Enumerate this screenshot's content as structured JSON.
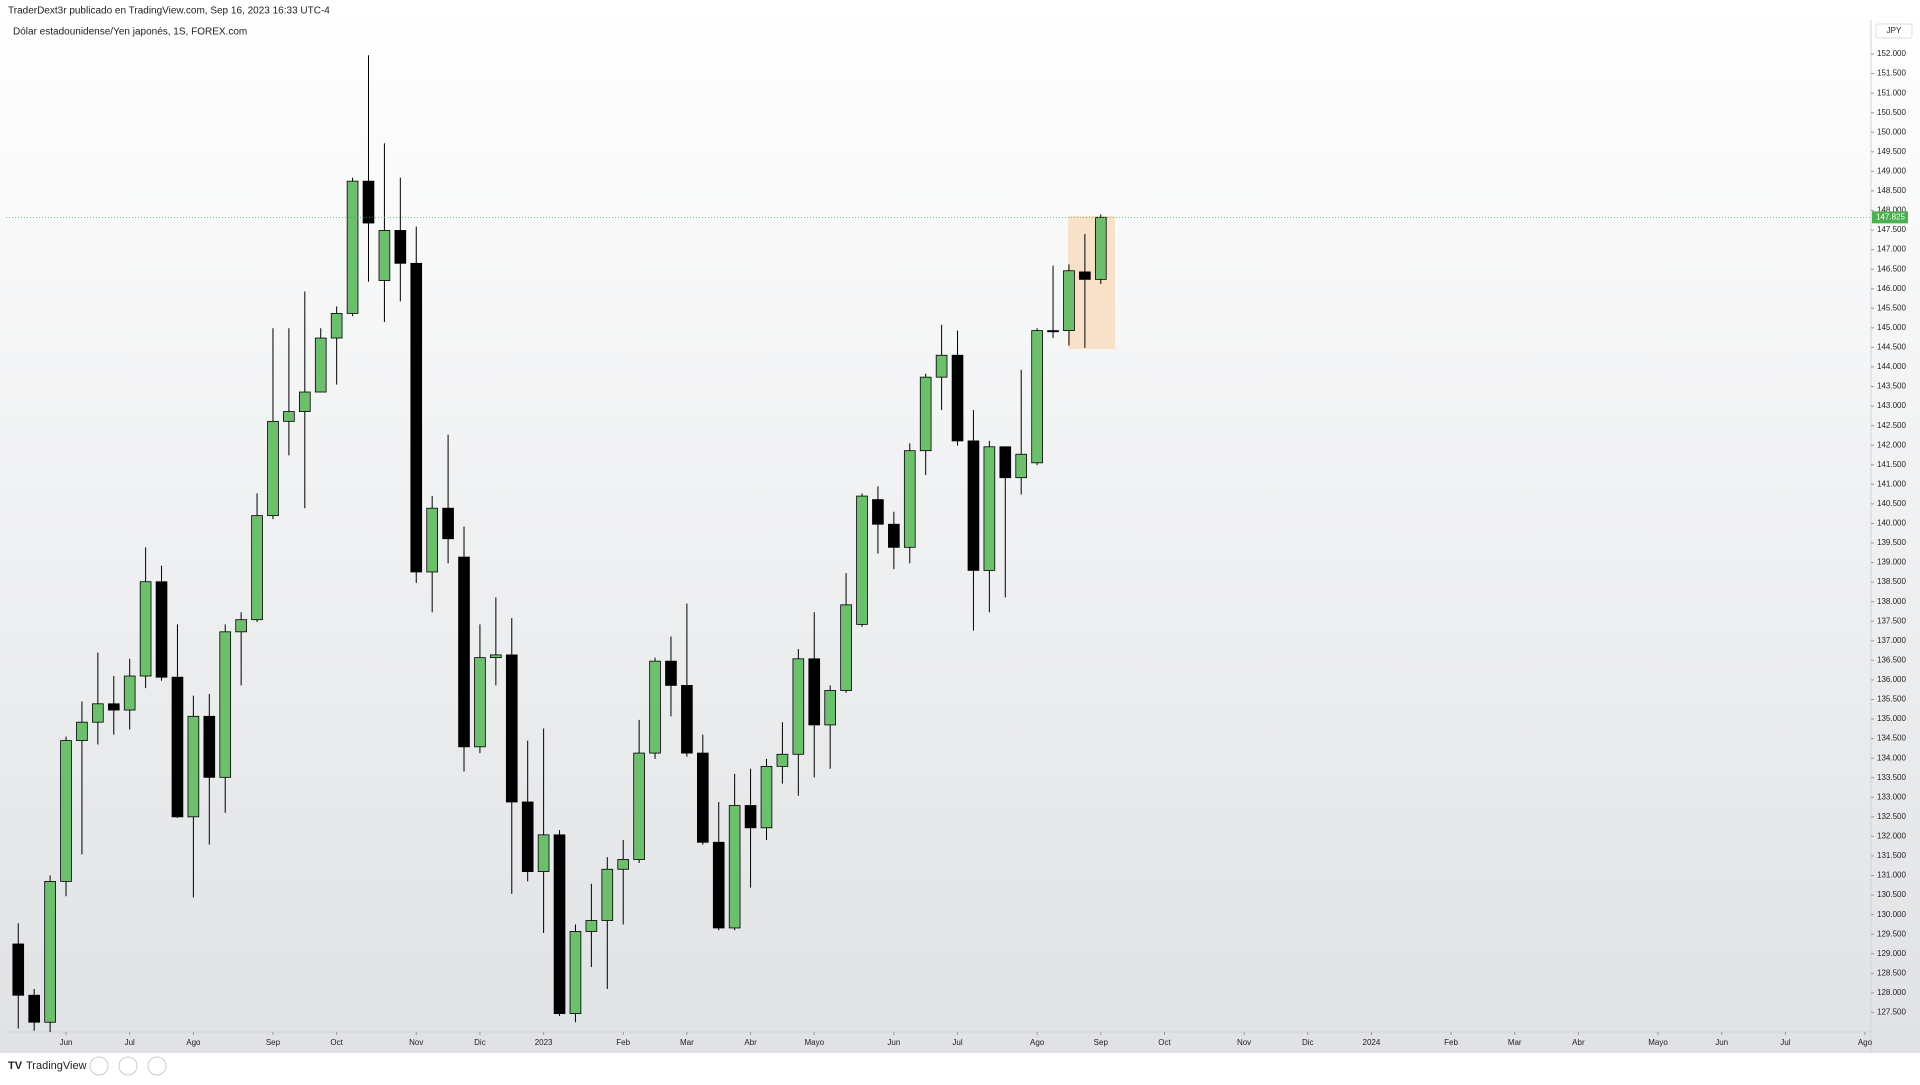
{
  "header": {
    "publisher": "TraderDext3r publicado en TradingView.com, Sep 16, 2023 16:33 UTC-4",
    "symbol": "Dólar estadounidense/Yen japonés, 1S, FOREX.com",
    "currency": "JPY",
    "footer_brand": "TradingView"
  },
  "chart_data": {
    "type": "candlestick",
    "x": [
      0,
      1,
      2,
      3,
      4,
      5,
      6,
      7,
      8,
      9,
      10,
      11,
      12,
      13,
      14,
      15,
      16,
      17,
      18,
      19,
      20,
      21,
      22,
      23,
      24,
      25,
      26,
      27,
      28,
      29,
      30,
      31,
      32,
      33,
      34,
      35,
      36,
      37,
      38,
      39,
      40,
      41,
      42,
      43,
      44,
      45,
      46,
      47,
      48,
      49,
      50,
      51,
      52,
      53,
      54,
      55,
      56,
      57,
      58,
      59,
      60,
      61,
      62,
      63,
      64,
      65,
      66,
      67,
      68
    ],
    "series": [
      {
        "up_color": "#6dbf6d",
        "down_color": "#000000",
        "open": [
          129.25,
          127.94,
          127.25,
          130.85,
          134.45,
          134.92,
          135.39,
          135.23,
          136.1,
          138.51,
          136.07,
          132.5,
          135.07,
          133.51,
          137.23,
          137.54,
          140.2,
          142.61,
          142.86,
          143.36,
          144.74,
          145.37,
          148.75,
          146.21,
          147.49,
          146.65,
          138.76,
          140.39,
          139.14,
          134.29,
          136.57,
          136.64,
          132.88,
          131.1,
          132.04,
          127.47,
          129.57,
          129.85,
          131.16,
          131.41,
          134.13,
          136.48,
          135.86,
          134.13,
          131.85,
          129.66,
          132.79,
          132.22,
          133.79,
          134.1,
          136.54,
          134.85,
          135.73,
          137.42,
          140.61,
          139.98,
          139.39,
          141.86,
          143.74,
          144.3,
          142.11,
          138.8,
          141.96,
          141.17,
          141.55,
          144.93,
          144.93,
          146.43,
          146.24
        ],
        "high": [
          129.78,
          128.1,
          131.0,
          134.55,
          135.45,
          136.7,
          136.1,
          136.54,
          139.39,
          138.92,
          137.42,
          135.6,
          135.64,
          137.42,
          137.73,
          140.77,
          144.99,
          144.99,
          145.93,
          144.99,
          145.55,
          148.84,
          151.97,
          149.72,
          148.84,
          147.59,
          140.7,
          142.27,
          139.92,
          137.42,
          138.11,
          137.58,
          134.45,
          134.76,
          132.16,
          129.75,
          130.79,
          131.47,
          131.91,
          134.98,
          136.57,
          137.11,
          137.95,
          134.6,
          132.88,
          133.6,
          133.73,
          133.98,
          134.92,
          136.79,
          137.73,
          135.86,
          138.73,
          140.77,
          140.95,
          140.3,
          142.05,
          143.83,
          145.08,
          144.93,
          142.9,
          142.11,
          141.96,
          143.93,
          144.99,
          146.59,
          146.62,
          147.4,
          147.9
        ],
        "low": [
          127.09,
          127.03,
          127.0,
          130.47,
          131.54,
          134.35,
          134.6,
          134.73,
          135.79,
          135.98,
          132.47,
          130.44,
          131.79,
          132.6,
          135.86,
          137.48,
          140.11,
          141.74,
          140.39,
          143.43,
          143.55,
          145.3,
          146.18,
          145.15,
          145.68,
          138.48,
          137.73,
          138.98,
          133.66,
          134.13,
          135.86,
          130.53,
          130.85,
          129.53,
          127.41,
          127.25,
          128.66,
          128.1,
          129.75,
          131.32,
          133.98,
          135.07,
          134.04,
          131.79,
          129.6,
          129.6,
          130.69,
          131.91,
          133.35,
          133.04,
          133.51,
          133.73,
          135.67,
          137.36,
          139.23,
          138.83,
          138.98,
          141.24,
          142.9,
          141.99,
          137.26,
          137.73,
          138.11,
          140.74,
          141.49,
          144.74,
          144.55,
          144.49,
          146.12
        ],
        "close": [
          127.94,
          127.25,
          130.85,
          134.45,
          134.92,
          135.39,
          135.23,
          136.1,
          138.51,
          136.07,
          132.5,
          135.07,
          133.51,
          137.23,
          137.54,
          140.2,
          142.61,
          142.86,
          143.36,
          144.74,
          145.37,
          148.75,
          147.68,
          147.49,
          146.65,
          138.76,
          140.39,
          139.61,
          134.29,
          136.57,
          136.64,
          132.88,
          131.1,
          132.04,
          127.47,
          129.57,
          129.85,
          131.16,
          131.41,
          134.13,
          136.48,
          135.86,
          134.13,
          131.85,
          129.66,
          132.79,
          132.22,
          133.79,
          134.1,
          136.54,
          134.85,
          135.73,
          137.92,
          140.7,
          139.98,
          139.39,
          141.86,
          143.74,
          144.3,
          142.11,
          138.8,
          141.96,
          141.17,
          141.77,
          144.93,
          144.9,
          146.46,
          146.24,
          147.825
        ]
      }
    ],
    "last_price": 147.825,
    "last_price_label": "147.825",
    "last_price_color": "#4caf50",
    "xlim": [
      -0.77,
      116.38
    ],
    "xticks": [
      {
        "value": 3,
        "label": "Jun"
      },
      {
        "value": 7,
        "label": "Jul"
      },
      {
        "value": 11,
        "label": "Ago"
      },
      {
        "value": 16,
        "label": "Sep"
      },
      {
        "value": 20,
        "label": "Oct"
      },
      {
        "value": 25,
        "label": "Nov"
      },
      {
        "value": 29,
        "label": "Dic"
      },
      {
        "value": 33,
        "label": "2023"
      },
      {
        "value": 38,
        "label": "Feb"
      },
      {
        "value": 42,
        "label": "Mar"
      },
      {
        "value": 46,
        "label": "Abr"
      },
      {
        "value": 50,
        "label": "Mayo"
      },
      {
        "value": 55,
        "label": "Jun"
      },
      {
        "value": 59,
        "label": "Jul"
      },
      {
        "value": 64,
        "label": "Ago"
      },
      {
        "value": 68,
        "label": "Sep"
      },
      {
        "value": 72,
        "label": "Oct"
      },
      {
        "value": 77,
        "label": "Nov"
      },
      {
        "value": 81,
        "label": "Dic"
      },
      {
        "value": 85,
        "label": "2024"
      },
      {
        "value": 90,
        "label": "Feb"
      },
      {
        "value": 94,
        "label": "Mar"
      },
      {
        "value": 98,
        "label": "Abr"
      },
      {
        "value": 103,
        "label": "Mayo"
      },
      {
        "value": 107,
        "label": "Jun"
      },
      {
        "value": 111,
        "label": "Jul"
      },
      {
        "value": 116,
        "label": "Ago"
      }
    ],
    "ylim": [
      127.0,
      152.87
    ],
    "yticks": [
      {
        "value": 127.5,
        "label": "127.500"
      },
      {
        "value": 128,
        "label": "128.000"
      },
      {
        "value": 128.5,
        "label": "128.500"
      },
      {
        "value": 129,
        "label": "129.000"
      },
      {
        "value": 129.5,
        "label": "129.500"
      },
      {
        "value": 130,
        "label": "130.000"
      },
      {
        "value": 130.5,
        "label": "130.500"
      },
      {
        "value": 131,
        "label": "131.000"
      },
      {
        "value": 131.5,
        "label": "131.500"
      },
      {
        "value": 132,
        "label": "132.000"
      },
      {
        "value": 132.5,
        "label": "132.500"
      },
      {
        "value": 133,
        "label": "133.000"
      },
      {
        "value": 133.5,
        "label": "133.500"
      },
      {
        "value": 134,
        "label": "134.000"
      },
      {
        "value": 134.5,
        "label": "134.500"
      },
      {
        "value": 135,
        "label": "135.000"
      },
      {
        "value": 135.5,
        "label": "135.500"
      },
      {
        "value": 136,
        "label": "136.000"
      },
      {
        "value": 136.5,
        "label": "136.500"
      },
      {
        "value": 137,
        "label": "137.000"
      },
      {
        "value": 137.5,
        "label": "137.500"
      },
      {
        "value": 138,
        "label": "138.000"
      },
      {
        "value": 138.5,
        "label": "138.500"
      },
      {
        "value": 139,
        "label": "139.000"
      },
      {
        "value": 139.5,
        "label": "139.500"
      },
      {
        "value": 140,
        "label": "140.000"
      },
      {
        "value": 140.5,
        "label": "140.500"
      },
      {
        "value": 141,
        "label": "141.000"
      },
      {
        "value": 141.5,
        "label": "141.500"
      },
      {
        "value": 142,
        "label": "142.000"
      },
      {
        "value": 142.5,
        "label": "142.500"
      },
      {
        "value": 143,
        "label": "143.000"
      },
      {
        "value": 143.5,
        "label": "143.500"
      },
      {
        "value": 144,
        "label": "144.000"
      },
      {
        "value": 144.5,
        "label": "144.500"
      },
      {
        "value": 145,
        "label": "145.000"
      },
      {
        "value": 145.5,
        "label": "145.500"
      },
      {
        "value": 146,
        "label": "146.000"
      },
      {
        "value": 146.5,
        "label": "146.500"
      },
      {
        "value": 147,
        "label": "147.000"
      },
      {
        "value": 147.5,
        "label": "147.500"
      },
      {
        "value": 148,
        "label": "148.000"
      },
      {
        "value": 148.5,
        "label": "148.500"
      },
      {
        "value": 149,
        "label": "149.000"
      },
      {
        "value": 149.5,
        "label": "149.500"
      },
      {
        "value": 150,
        "label": "150.000"
      },
      {
        "value": 150.5,
        "label": "150.500"
      },
      {
        "value": 151,
        "label": "151.000"
      },
      {
        "value": 151.5,
        "label": "151.500"
      },
      {
        "value": 152,
        "label": "152.000"
      }
    ],
    "grid": false
  }
}
